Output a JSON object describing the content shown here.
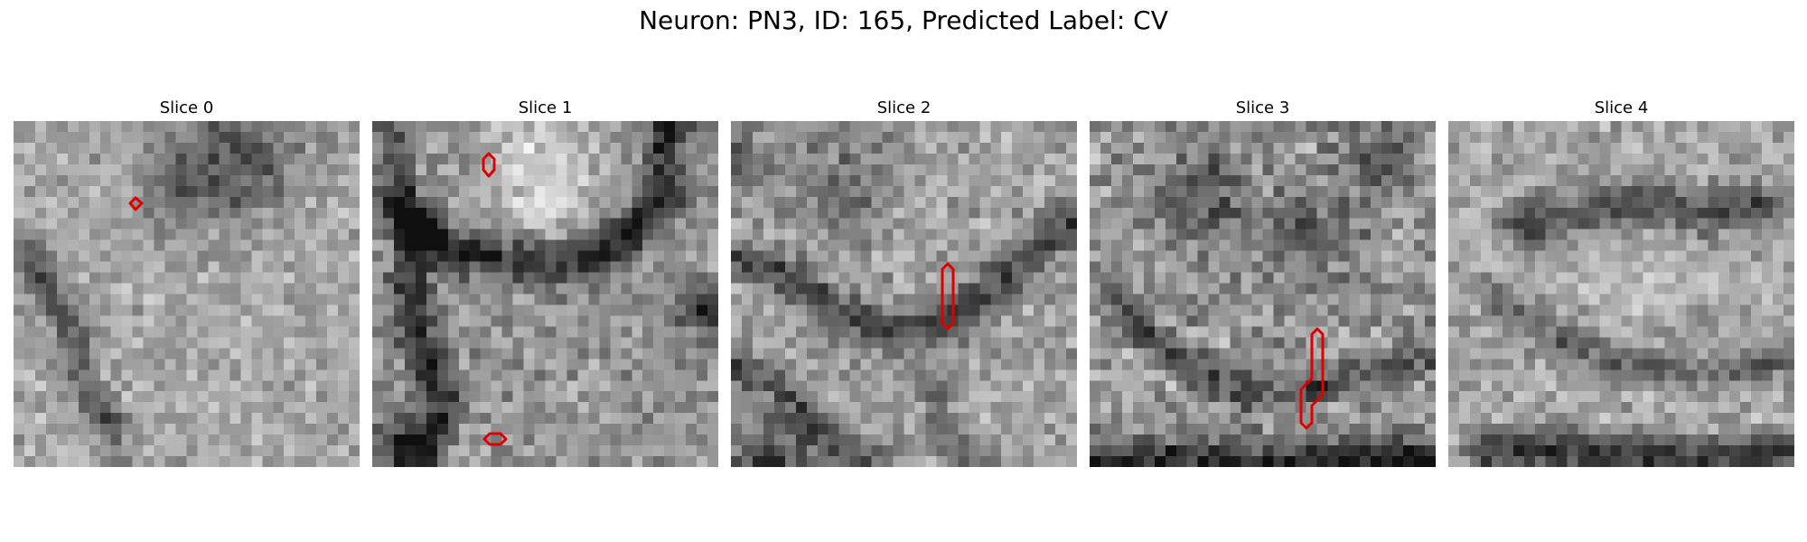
{
  "figure": {
    "title": "Neuron: PN3, ID: 165, Predicted Label: CV"
  },
  "colors": {
    "background": "#ffffff",
    "contour": "#e00000",
    "image_colormap": "gray"
  },
  "slices": [
    {
      "label": "Slice 0",
      "contours": 1
    },
    {
      "label": "Slice 1",
      "contours": 2
    },
    {
      "label": "Slice 2",
      "contours": 1
    },
    {
      "label": "Slice 3",
      "contours": 1
    },
    {
      "label": "Slice 4",
      "contours": 0
    }
  ]
}
